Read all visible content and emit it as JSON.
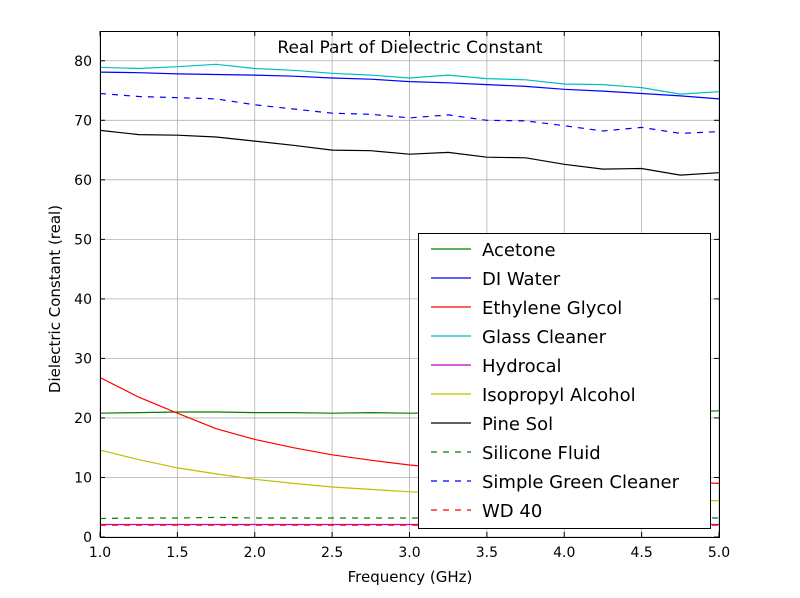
{
  "chart_data": {
    "type": "line",
    "title": "Real Part of Dielectric Constant",
    "xlabel": "Frequency (GHz)",
    "ylabel": "Dielectric Constant (real)",
    "xlim": [
      1.0,
      5.0
    ],
    "ylim": [
      0,
      85
    ],
    "xticks": [
      "1.0",
      "1.5",
      "2.0",
      "2.5",
      "3.0",
      "3.5",
      "4.0",
      "4.5",
      "5.0"
    ],
    "yticks": [
      "0",
      "10",
      "20",
      "30",
      "40",
      "50",
      "60",
      "70",
      "80"
    ],
    "grid": true,
    "legend_position": "lower-right",
    "x": [
      1.0,
      1.25,
      1.5,
      1.75,
      2.0,
      2.25,
      2.5,
      2.75,
      3.0,
      3.25,
      3.5,
      3.75,
      4.0,
      4.25,
      4.5,
      4.75,
      5.0
    ],
    "series": [
      {
        "name": "Acetone",
        "color": "#008000",
        "dash": "solid",
        "values": [
          20.8,
          20.9,
          21.0,
          21.0,
          20.9,
          20.9,
          20.8,
          20.9,
          20.8,
          20.9,
          20.9,
          20.9,
          20.9,
          21.0,
          21.0,
          21.0,
          21.2
        ]
      },
      {
        "name": "DI Water",
        "color": "#0000ff",
        "dash": "solid",
        "values": [
          78.1,
          78.0,
          77.8,
          77.7,
          77.6,
          77.4,
          77.1,
          76.9,
          76.5,
          76.3,
          76.0,
          75.7,
          75.2,
          74.9,
          74.5,
          74.1,
          73.6
        ]
      },
      {
        "name": "Ethylene Glycol",
        "color": "#ff0000",
        "dash": "solid",
        "values": [
          26.8,
          23.5,
          20.8,
          18.2,
          16.4,
          15.0,
          13.8,
          12.9,
          12.1,
          11.5,
          11.0,
          10.6,
          10.2,
          9.9,
          9.6,
          9.3,
          9.0
        ]
      },
      {
        "name": "Glass Cleaner",
        "color": "#00bfbf",
        "dash": "solid",
        "values": [
          78.9,
          78.7,
          79.0,
          79.4,
          78.7,
          78.4,
          77.9,
          77.6,
          77.1,
          77.6,
          77.0,
          76.8,
          76.1,
          76.0,
          75.5,
          74.4,
          74.8
        ]
      },
      {
        "name": "Hydrocal",
        "color": "#bf00bf",
        "dash": "solid",
        "values": [
          2.1,
          2.1,
          2.1,
          2.1,
          2.1,
          2.1,
          2.1,
          2.1,
          2.1,
          2.1,
          2.1,
          2.1,
          2.1,
          2.1,
          2.1,
          2.1,
          2.1
        ]
      },
      {
        "name": "Isopropyl Alcohol",
        "color": "#bfbf00",
        "dash": "solid",
        "values": [
          14.6,
          13.0,
          11.6,
          10.6,
          9.7,
          9.0,
          8.4,
          8.0,
          7.6,
          7.3,
          7.1,
          6.9,
          6.7,
          6.5,
          6.4,
          6.2,
          6.1
        ]
      },
      {
        "name": "Pine Sol",
        "color": "#000000",
        "dash": "solid",
        "values": [
          68.3,
          67.6,
          67.5,
          67.2,
          66.5,
          65.8,
          65.0,
          64.9,
          64.3,
          64.6,
          63.8,
          63.7,
          62.6,
          61.8,
          61.9,
          60.8,
          61.2
        ]
      },
      {
        "name": "Silicone Fluid",
        "color": "#008000",
        "dash": "dashed",
        "values": [
          3.1,
          3.2,
          3.2,
          3.3,
          3.2,
          3.2,
          3.2,
          3.2,
          3.2,
          3.2,
          3.2,
          3.2,
          3.2,
          3.2,
          3.2,
          3.2,
          3.2
        ]
      },
      {
        "name": "Simple Green Cleaner",
        "color": "#0000ff",
        "dash": "dashed",
        "values": [
          74.5,
          74.0,
          73.8,
          73.6,
          72.6,
          71.9,
          71.2,
          71.0,
          70.4,
          70.9,
          70.0,
          69.9,
          69.1,
          68.2,
          68.8,
          67.8,
          68.1
        ]
      },
      {
        "name": "WD 40",
        "color": "#ff0000",
        "dash": "dashed",
        "values": [
          2.0,
          2.0,
          2.0,
          2.0,
          2.0,
          2.0,
          2.0,
          2.0,
          2.0,
          2.0,
          2.0,
          2.0,
          2.0,
          2.0,
          2.0,
          2.0,
          2.0
        ]
      }
    ]
  }
}
